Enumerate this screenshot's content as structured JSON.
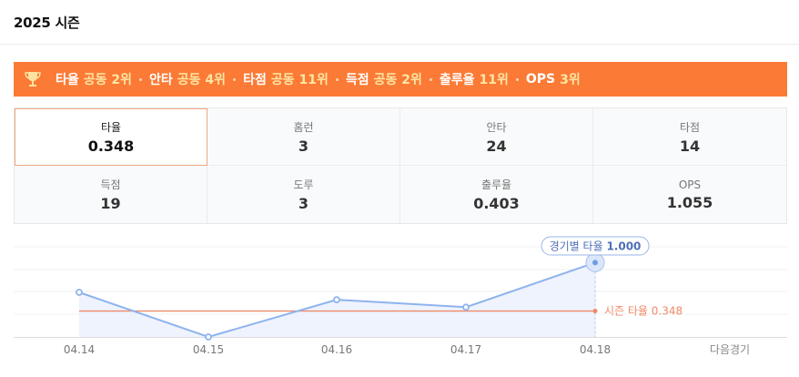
{
  "header": {
    "title": "2025 시즌"
  },
  "banner": {
    "icon": "trophy-icon",
    "items": [
      {
        "label": "타율",
        "rank": "공동 2위"
      },
      {
        "label": "안타",
        "rank": "공동 4위"
      },
      {
        "label": "타점",
        "rank": "공동 11위"
      },
      {
        "label": "득점",
        "rank": "공동 2위"
      },
      {
        "label": "출루율",
        "rank": "11위"
      },
      {
        "label": "OPS",
        "rank": "3위"
      }
    ]
  },
  "stats": [
    {
      "label": "타율",
      "value": "0.348",
      "active": true
    },
    {
      "label": "홈런",
      "value": "3"
    },
    {
      "label": "안타",
      "value": "24"
    },
    {
      "label": "타점",
      "value": "14"
    },
    {
      "label": "득점",
      "value": "19"
    },
    {
      "label": "도루",
      "value": "3"
    },
    {
      "label": "출루율",
      "value": "0.403"
    },
    {
      "label": "OPS",
      "value": "1.055"
    }
  ],
  "colors": {
    "accent": "#fb7a35",
    "line": "#8fb3ee",
    "season_line": "#f08a68"
  },
  "chart_data": {
    "type": "line",
    "categories": [
      "04.14",
      "04.15",
      "04.16",
      "04.17",
      "04.18"
    ],
    "values": [
      0.6,
      0.0,
      0.5,
      0.4,
      1.0
    ],
    "ylim": [
      0,
      1.2
    ],
    "season_avg": 0.348,
    "season_label": "시즌 타율 0.348",
    "tooltip": {
      "prefix": "경기별 타율",
      "value": "1.000"
    },
    "next_label": "다음경기",
    "grid": true
  }
}
